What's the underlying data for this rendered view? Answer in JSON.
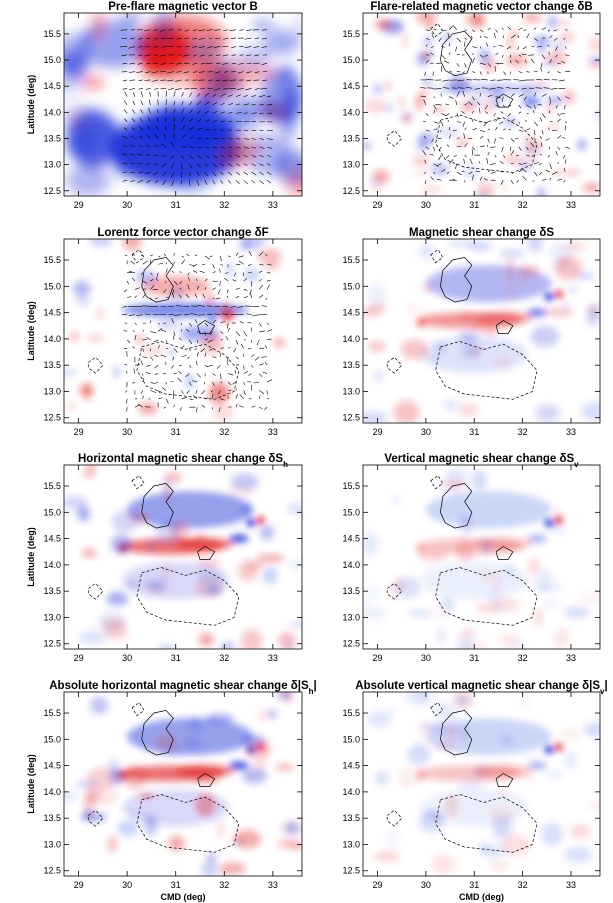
{
  "figure": {
    "axis_labels": {
      "x": "CMD (deg)",
      "y": "Latitude (deg)"
    }
  },
  "chart_data": [
    {
      "type": "heatmap",
      "title": "Pre-flare magnetic vector B",
      "title_sub": "",
      "title_tail": "",
      "map_style": "strong_bipolar",
      "overlay": "arrows",
      "contours": false,
      "xlim": [
        28.7,
        33.6
      ],
      "ylim": [
        12.4,
        15.9
      ],
      "xticks": [
        29,
        30,
        31,
        32,
        33
      ],
      "yticks": [
        12.5,
        13.0,
        13.5,
        14.0,
        14.5,
        15.0,
        15.5
      ],
      "xlabel": "",
      "ylabel": "Latitude (deg)",
      "colors": {
        "positive": "#e01818",
        "negative": "#1a2fd8"
      }
    },
    {
      "type": "heatmap",
      "title": "Flare-related magnetic vector change δB",
      "title_sub": "",
      "title_tail": "",
      "map_style": "weak_noise",
      "overlay": "arrows",
      "contours": true,
      "xlim": [
        28.7,
        33.6
      ],
      "ylim": [
        12.4,
        15.9
      ],
      "xticks": [
        29,
        30,
        31,
        32,
        33
      ],
      "yticks": [
        12.5,
        13.0,
        13.5,
        14.0,
        14.5,
        15.0,
        15.5
      ],
      "xlabel": "",
      "ylabel": "",
      "colors": {
        "positive": "#e01818",
        "negative": "#1a2fd8"
      }
    },
    {
      "type": "heatmap",
      "title": "Lorentz force vector change δF",
      "title_sub": "",
      "title_tail": "",
      "map_style": "pil_strip",
      "overlay": "arrows",
      "contours": true,
      "xlim": [
        28.7,
        33.6
      ],
      "ylim": [
        12.4,
        15.9
      ],
      "xticks": [
        29,
        30,
        31,
        32,
        33
      ],
      "yticks": [
        12.5,
        13.0,
        13.5,
        14.0,
        14.5,
        15.0,
        15.5
      ],
      "xlabel": "",
      "ylabel": "Latitude (deg)",
      "colors": {
        "positive": "#e01818",
        "negative": "#1a2fd8"
      }
    },
    {
      "type": "heatmap",
      "title": "Magnetic shear change δS",
      "title_sub": "",
      "title_tail": "",
      "map_style": "shear",
      "overlay": "none",
      "contours": true,
      "xlim": [
        28.7,
        33.6
      ],
      "ylim": [
        12.4,
        15.9
      ],
      "xticks": [
        29,
        30,
        31,
        32,
        33
      ],
      "yticks": [
        12.5,
        13.0,
        13.5,
        14.0,
        14.5,
        15.0,
        15.5
      ],
      "xlabel": "",
      "ylabel": "",
      "colors": {
        "positive": "#e01818",
        "negative": "#1a2fd8"
      }
    },
    {
      "type": "heatmap",
      "title": "Horizontal magnetic shear change δS",
      "title_sub": "h",
      "title_tail": "",
      "map_style": "shear_strong",
      "overlay": "none",
      "contours": true,
      "xlim": [
        28.7,
        33.6
      ],
      "ylim": [
        12.4,
        15.9
      ],
      "xticks": [
        29,
        30,
        31,
        32,
        33
      ],
      "yticks": [
        12.5,
        13.0,
        13.5,
        14.0,
        14.5,
        15.0,
        15.5
      ],
      "xlabel": "",
      "ylabel": "Latitude (deg)",
      "colors": {
        "positive": "#e01818",
        "negative": "#1a2fd8"
      }
    },
    {
      "type": "heatmap",
      "title": "Vertical magnetic shear change δS",
      "title_sub": "v",
      "title_tail": "",
      "map_style": "shear_weak",
      "overlay": "none",
      "contours": true,
      "xlim": [
        28.7,
        33.6
      ],
      "ylim": [
        12.4,
        15.9
      ],
      "xticks": [
        29,
        30,
        31,
        32,
        33
      ],
      "yticks": [
        12.5,
        13.0,
        13.5,
        14.0,
        14.5,
        15.0,
        15.5
      ],
      "xlabel": "",
      "ylabel": "",
      "colors": {
        "positive": "#e01818",
        "negative": "#1a2fd8"
      }
    },
    {
      "type": "heatmap",
      "title": "Absolute horizontal magnetic shear change δ|S",
      "title_sub": "h",
      "title_tail": "|",
      "map_style": "shear_strong",
      "overlay": "none",
      "contours": true,
      "xlim": [
        28.7,
        33.6
      ],
      "ylim": [
        12.4,
        15.9
      ],
      "xticks": [
        29,
        30,
        31,
        32,
        33
      ],
      "yticks": [
        12.5,
        13.0,
        13.5,
        14.0,
        14.5,
        15.0,
        15.5
      ],
      "xlabel": "CMD (deg)",
      "ylabel": "Latitude (deg)",
      "colors": {
        "positive": "#e01818",
        "negative": "#1a2fd8"
      }
    },
    {
      "type": "heatmap",
      "title": "Absolute vertical magnetic shear change δ|S",
      "title_sub": "v",
      "title_tail": "|",
      "map_style": "shear_weak",
      "overlay": "none",
      "contours": true,
      "xlim": [
        28.7,
        33.6
      ],
      "ylim": [
        12.4,
        15.9
      ],
      "xticks": [
        29,
        30,
        31,
        32,
        33
      ],
      "yticks": [
        12.5,
        13.0,
        13.5,
        14.0,
        14.5,
        15.0,
        15.5
      ],
      "xlabel": "CMD (deg)",
      "ylabel": "",
      "colors": {
        "positive": "#e01818",
        "negative": "#1a2fd8"
      }
    }
  ]
}
